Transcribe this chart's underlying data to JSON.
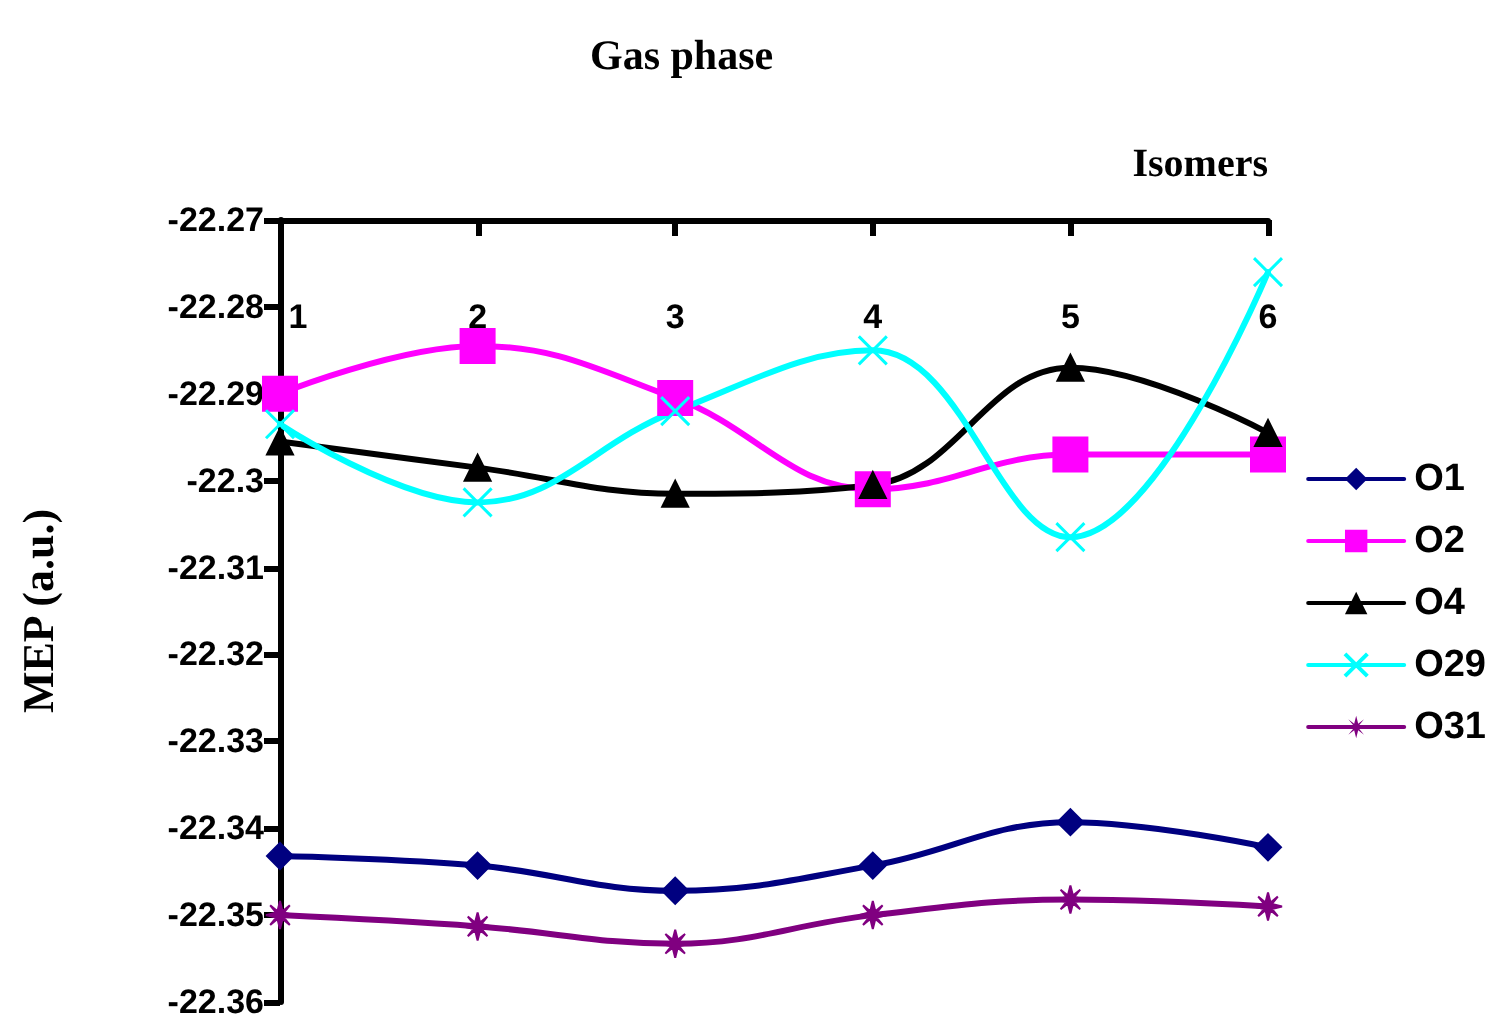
{
  "chart_data": {
    "type": "line",
    "title": "Gas phase",
    "xlabel": "Isomers",
    "ylabel": "MEP (a.u.)",
    "categories": [
      "1",
      "2",
      "3",
      "4",
      "5",
      "6"
    ],
    "series": [
      {
        "name": "O1",
        "color": "#000080",
        "marker": "diamond",
        "values": [
          -22.3432,
          -22.3443,
          -22.3472,
          -22.3443,
          -22.3393,
          -22.3422
        ]
      },
      {
        "name": "O2",
        "color": "#ff00ff",
        "marker": "square",
        "values": [
          -22.29,
          -22.2845,
          -22.2905,
          -22.301,
          -22.297,
          -22.297
        ]
      },
      {
        "name": "O4",
        "color": "#000000",
        "marker": "triangle",
        "values": [
          -22.2955,
          -22.2985,
          -22.3015,
          -22.3005,
          -22.287,
          -22.2945
        ]
      },
      {
        "name": "O29",
        "color": "#00ffff",
        "marker": "cross",
        "values": [
          -22.2935,
          -22.3025,
          -22.292,
          -22.285,
          -22.3065,
          -22.276
        ]
      },
      {
        "name": "O31",
        "color": "#800080",
        "marker": "star",
        "values": [
          -22.35,
          -22.3513,
          -22.3533,
          -22.35,
          -22.3482,
          -22.349
        ]
      }
    ],
    "ylim": [
      -22.36,
      -22.27
    ],
    "yticks": [
      -22.36,
      -22.35,
      -22.34,
      -22.33,
      -22.32,
      -22.31,
      -22.3,
      -22.29,
      -22.28,
      -22.27
    ],
    "grid": false,
    "legend": "right"
  }
}
